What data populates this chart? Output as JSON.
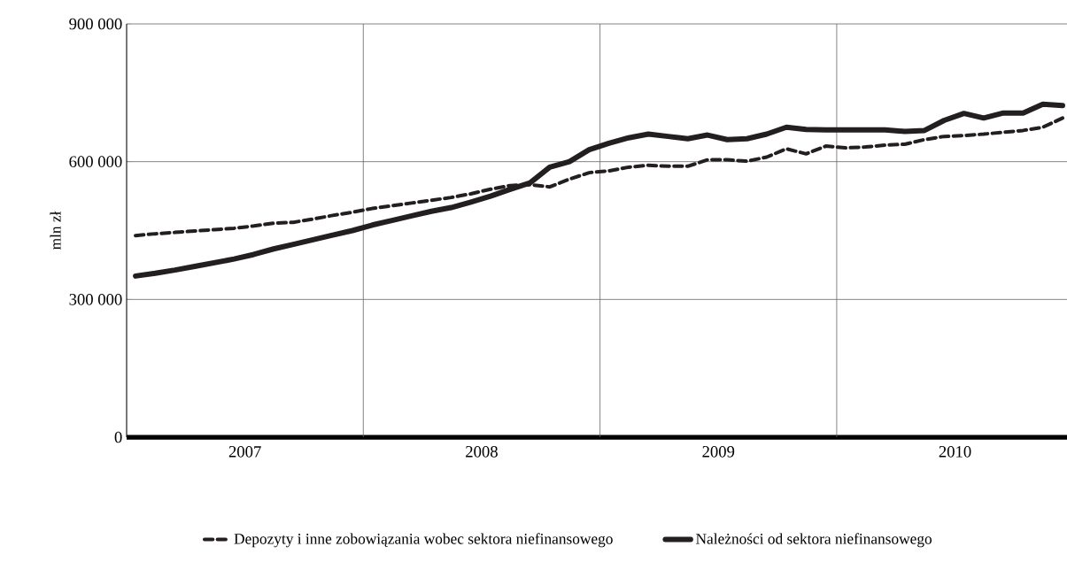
{
  "chart_data": {
    "type": "line",
    "ylabel": "mln zł",
    "x": [
      "2007-01-15",
      "2007-02-15",
      "2007-03-15",
      "2007-04-15",
      "2007-05-15",
      "2007-06-15",
      "2007-07-15",
      "2007-08-15",
      "2007-09-15",
      "2007-10-15",
      "2007-11-15",
      "2007-12-15",
      "2008-01-15",
      "2008-02-15",
      "2008-03-15",
      "2008-04-15",
      "2008-05-15",
      "2008-06-15",
      "2008-07-15",
      "2008-08-15",
      "2008-09-15",
      "2008-10-15",
      "2008-11-15",
      "2008-12-15",
      "2009-01-15",
      "2009-02-15",
      "2009-03-15",
      "2009-04-15",
      "2009-05-15",
      "2009-06-15",
      "2009-07-15",
      "2009-08-15",
      "2009-09-15",
      "2009-10-15",
      "2009-11-15",
      "2009-12-15",
      "2010-01-15",
      "2010-02-15",
      "2010-03-15",
      "2010-04-15",
      "2010-05-15",
      "2010-06-15",
      "2010-07-15",
      "2010-08-15",
      "2010-09-15",
      "2010-10-15",
      "2010-11-15",
      "2010-12-15"
    ],
    "series": [
      {
        "name": "Depozyty i inne zobowiązania wobec sektora niefinansowego",
        "color": "#231f20",
        "line_style": "dashed",
        "values": [
          439000,
          443000,
          446000,
          449000,
          452000,
          455000,
          460000,
          466000,
          468000,
          475000,
          483000,
          490000,
          498000,
          504000,
          510000,
          516000,
          522000,
          530000,
          540000,
          548000,
          550000,
          545000,
          562000,
          576000,
          580000,
          588000,
          592000,
          590000,
          590000,
          604000,
          604000,
          601000,
          610000,
          628000,
          617000,
          634000,
          630000,
          632000,
          636000,
          638000,
          648000,
          655000,
          657000,
          660000,
          664000,
          668000,
          675000,
          695000
        ]
      },
      {
        "name": "Należności od sektora niefinansowego",
        "color": "#231f20",
        "line_style": "solid",
        "values": [
          351000,
          357000,
          364000,
          372000,
          380000,
          388000,
          398000,
          410000,
          420000,
          430000,
          440000,
          450000,
          462000,
          472000,
          482000,
          492000,
          500000,
          512000,
          525000,
          540000,
          554000,
          588000,
          600000,
          626000,
          640000,
          652000,
          660000,
          655000,
          650000,
          658000,
          648000,
          650000,
          660000,
          675000,
          670000,
          669000,
          669000,
          669000,
          669000,
          666000,
          668000,
          690000,
          705000,
          695000,
          706000,
          706000,
          725000,
          722000
        ]
      }
    ],
    "xlim": [
      "2007-01-01",
      "2010-12-22"
    ],
    "xticks": [
      {
        "value": "2007-07-01",
        "label": "2007"
      },
      {
        "value": "2008-01-01",
        "label": null
      },
      {
        "value": "2008-07-01",
        "label": "2008"
      },
      {
        "value": "2009-01-01",
        "label": null
      },
      {
        "value": "2009-07-01",
        "label": "2009"
      },
      {
        "value": "2010-01-01",
        "label": null
      },
      {
        "value": "2010-07-01",
        "label": "2010"
      }
    ],
    "ylim": [
      0,
      900000
    ],
    "yticks": [
      0,
      {
        "value": 300000,
        "label": "300 000"
      },
      {
        "value": 600000,
        "label": "600 000"
      },
      {
        "value": 900000,
        "label": "900 000"
      }
    ],
    "grid": true,
    "legend": "bottom"
  }
}
